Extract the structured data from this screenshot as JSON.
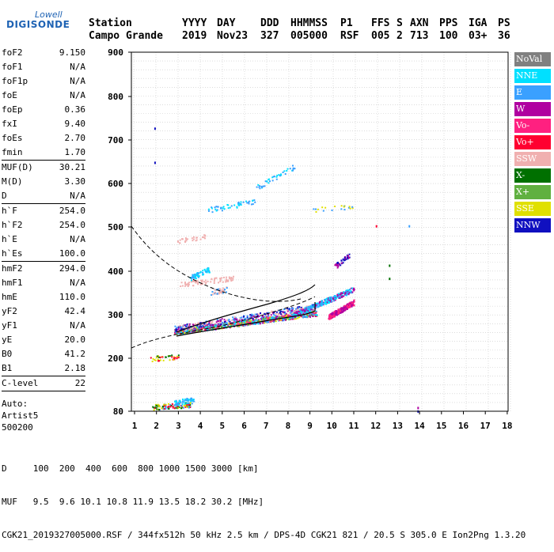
{
  "logo": {
    "line1": "Lowell",
    "line2": "DIGISONDE"
  },
  "header": {
    "labels": [
      "Station",
      "YYYY",
      "DAY",
      "DDD",
      "HHMMSS",
      "P1",
      "FFS",
      "S",
      "AXN",
      "PPS",
      "IGA",
      "PS"
    ],
    "values": [
      "Campo Grande",
      "2019",
      "Nov23",
      "327",
      "005000",
      "RSF",
      "005",
      "2",
      "713",
      "100",
      "03+",
      "36"
    ]
  },
  "params": {
    "group1": [
      {
        "k": "foF2",
        "v": "9.150"
      },
      {
        "k": "foF1",
        "v": "N/A"
      },
      {
        "k": "foF1p",
        "v": "N/A"
      },
      {
        "k": "foE",
        "v": "N/A"
      },
      {
        "k": "foEp",
        "v": "0.36"
      },
      {
        "k": "fxI",
        "v": "9.40"
      },
      {
        "k": "foEs",
        "v": "2.70"
      },
      {
        "k": "fmin",
        "v": "1.70"
      }
    ],
    "group2": [
      {
        "k": "MUF(D)",
        "v": "30.21"
      },
      {
        "k": "M(D)",
        "v": "3.30"
      },
      {
        "k": "D",
        "v": "N/A"
      }
    ],
    "group3": [
      {
        "k": "h`F",
        "v": "254.0"
      },
      {
        "k": "h`F2",
        "v": "254.0"
      },
      {
        "k": "h`E",
        "v": "N/A"
      },
      {
        "k": "h`Es",
        "v": "100.0"
      }
    ],
    "group4": [
      {
        "k": "hmF2",
        "v": "294.0"
      },
      {
        "k": "hmF1",
        "v": "N/A"
      },
      {
        "k": "hmE",
        "v": "110.0"
      },
      {
        "k": "yF2",
        "v": "42.4"
      },
      {
        "k": "yF1",
        "v": "N/A"
      },
      {
        "k": "yE",
        "v": "20.0"
      },
      {
        "k": "B0",
        "v": "41.2"
      },
      {
        "k": "B1",
        "v": "2.18"
      }
    ],
    "group5": [
      {
        "k": "C-level",
        "v": "22"
      }
    ],
    "auto": [
      "Auto:",
      "Artist5",
      "500200"
    ]
  },
  "plot": {
    "y_ticks": [
      "900",
      "800",
      "700",
      "600",
      "500",
      "400",
      "300",
      "200",
      "80"
    ],
    "x_ticks": [
      "1",
      "2",
      "3",
      "4",
      "5",
      "6",
      "7",
      "8",
      "9",
      "10",
      "11",
      "12",
      "13",
      "14",
      "15",
      "16",
      "17",
      "18"
    ],
    "grid": true
  },
  "legend": [
    {
      "label": "NoVal",
      "color": "#808080"
    },
    {
      "label": "NNE",
      "color": "#00e0ff"
    },
    {
      "label": "E",
      "color": "#3aa0ff"
    },
    {
      "label": "W",
      "color": "#b000a0"
    },
    {
      "label": "Vo-",
      "color": "#ff2080"
    },
    {
      "label": "Vo+",
      "color": "#ff0030"
    },
    {
      "label": "SSW",
      "color": "#f0b0b0"
    },
    {
      "label": "X-",
      "color": "#007000"
    },
    {
      "label": "X+",
      "color": "#60b040"
    },
    {
      "label": "SSE",
      "color": "#e0e000"
    },
    {
      "label": "NNW",
      "color": "#1010c0"
    }
  ],
  "footer": {
    "line1": "D     100  200  400  600  800 1000 1500 3000 [km]",
    "line2": "MUF   9.5  9.6 10.1 10.8 11.9 13.5 18.2 30.2 [MHz]",
    "line3": "CGK21_2019327005000.RSF / 344fx512h 50 kHz 2.5 km / DPS-4D CGK21 821 / 20.5 S 305.0 E Ion2Png 1.3.20"
  }
}
